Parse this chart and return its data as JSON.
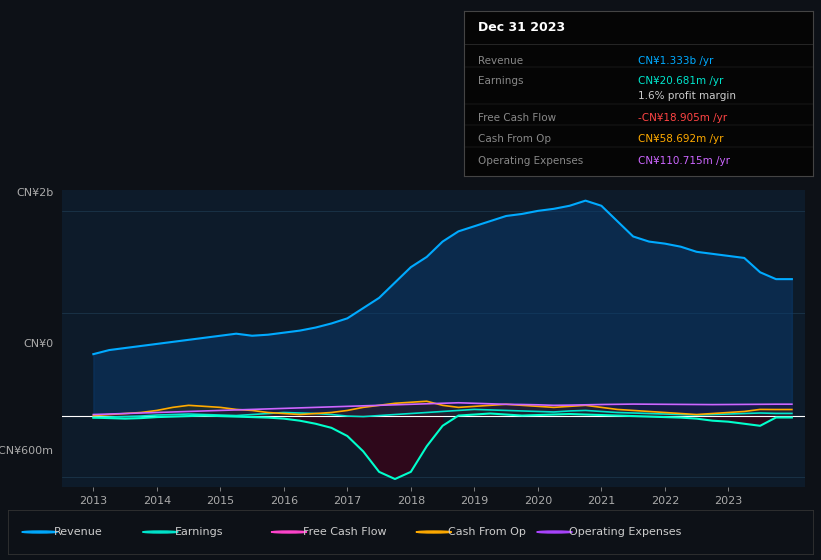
{
  "bg_color": "#0d1117",
  "plot_bg_color": "#0d1b2a",
  "ylim": [
    -700000000,
    2200000000
  ],
  "xlim": [
    2012.5,
    2024.2
  ],
  "xticks": [
    2013,
    2014,
    2015,
    2016,
    2017,
    2018,
    2019,
    2020,
    2021,
    2022,
    2023
  ],
  "info_box": {
    "title": "Dec 31 2023",
    "rows": [
      {
        "label": "Revenue",
        "value": "CN¥1.333b /yr",
        "value_color": "#00aaff"
      },
      {
        "label": "Earnings",
        "value": "CN¥20.681m /yr",
        "value_color": "#00e5cc"
      },
      {
        "label": "",
        "value": "1.6% profit margin",
        "value_color": "#cccccc"
      },
      {
        "label": "Free Cash Flow",
        "value": "-CN¥18.905m /yr",
        "value_color": "#ff4444"
      },
      {
        "label": "Cash From Op",
        "value": "CN¥58.692m /yr",
        "value_color": "#ffaa00"
      },
      {
        "label": "Operating Expenses",
        "value": "CN¥110.715m /yr",
        "value_color": "#cc66ff"
      }
    ]
  },
  "legend": [
    {
      "label": "Revenue",
      "color": "#00aaff"
    },
    {
      "label": "Earnings",
      "color": "#00e5cc"
    },
    {
      "label": "Free Cash Flow",
      "color": "#ff44cc"
    },
    {
      "label": "Cash From Op",
      "color": "#ffaa00"
    },
    {
      "label": "Operating Expenses",
      "color": "#aa44ff"
    }
  ],
  "revenue_color": "#00aaff",
  "earnings_color": "#00e5cc",
  "fcf_color": "#00ffcc",
  "cashop_color": "#ffaa00",
  "opex_color": "#cc66ff",
  "zero_line_color": "#ffffff"
}
